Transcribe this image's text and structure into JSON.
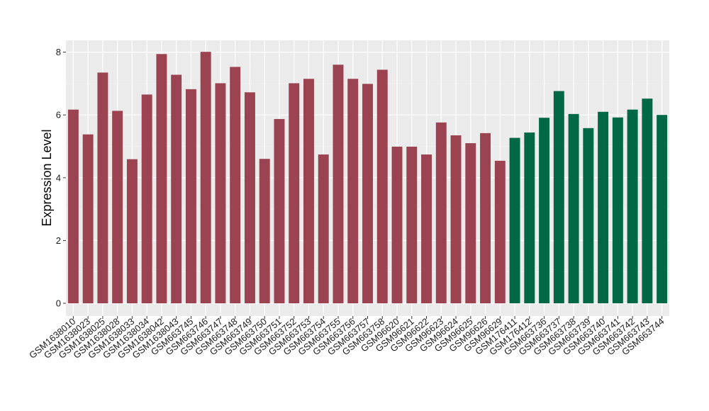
{
  "chart_data": {
    "type": "bar",
    "title": "",
    "xlabel": "",
    "ylabel": "Expression Level",
    "ylim": [
      0,
      8.3
    ],
    "yticks": [
      0,
      2,
      4,
      6,
      8
    ],
    "grid": true,
    "background": "#ebebeb",
    "colors": {
      "group_a": "#9b4350",
      "group_b": "#006845"
    },
    "categories": [
      "GSM1638010",
      "GSM1638023",
      "GSM1638025",
      "GSM1638028",
      "GSM1638033",
      "GSM1638034",
      "GSM1638042",
      "GSM1638043",
      "GSM663745",
      "GSM663746",
      "GSM663747",
      "GSM663748",
      "GSM663749",
      "GSM663750",
      "GSM663751",
      "GSM663752",
      "GSM663753",
      "GSM663754",
      "GSM663755",
      "GSM663756",
      "GSM663757",
      "GSM663758",
      "GSM96620",
      "GSM96621",
      "GSM96622",
      "GSM96623",
      "GSM96624",
      "GSM96625",
      "GSM96626",
      "GSM96629",
      "GSM176411",
      "GSM176412",
      "GSM663736",
      "GSM663737",
      "GSM663738",
      "GSM663739",
      "GSM663740",
      "GSM663741",
      "GSM663742",
      "GSM663743",
      "GSM663744"
    ],
    "values": [
      6.17,
      5.38,
      7.35,
      6.13,
      4.59,
      6.65,
      7.94,
      7.28,
      6.82,
      8.01,
      7.01,
      7.53,
      6.72,
      4.6,
      5.87,
      7.01,
      7.15,
      4.74,
      7.6,
      7.15,
      6.99,
      7.44,
      4.99,
      4.99,
      4.74,
      5.76,
      5.35,
      5.1,
      5.42,
      4.54,
      5.27,
      5.44,
      5.91,
      6.76,
      6.03,
      5.58,
      6.1,
      5.92,
      6.17,
      6.52,
      6.0
    ],
    "groups": [
      "group_a",
      "group_a",
      "group_a",
      "group_a",
      "group_a",
      "group_a",
      "group_a",
      "group_a",
      "group_a",
      "group_a",
      "group_a",
      "group_a",
      "group_a",
      "group_a",
      "group_a",
      "group_a",
      "group_a",
      "group_a",
      "group_a",
      "group_a",
      "group_a",
      "group_a",
      "group_a",
      "group_a",
      "group_a",
      "group_a",
      "group_a",
      "group_a",
      "group_a",
      "group_a",
      "group_b",
      "group_b",
      "group_b",
      "group_b",
      "group_b",
      "group_b",
      "group_b",
      "group_b",
      "group_b",
      "group_b",
      "group_b"
    ]
  }
}
